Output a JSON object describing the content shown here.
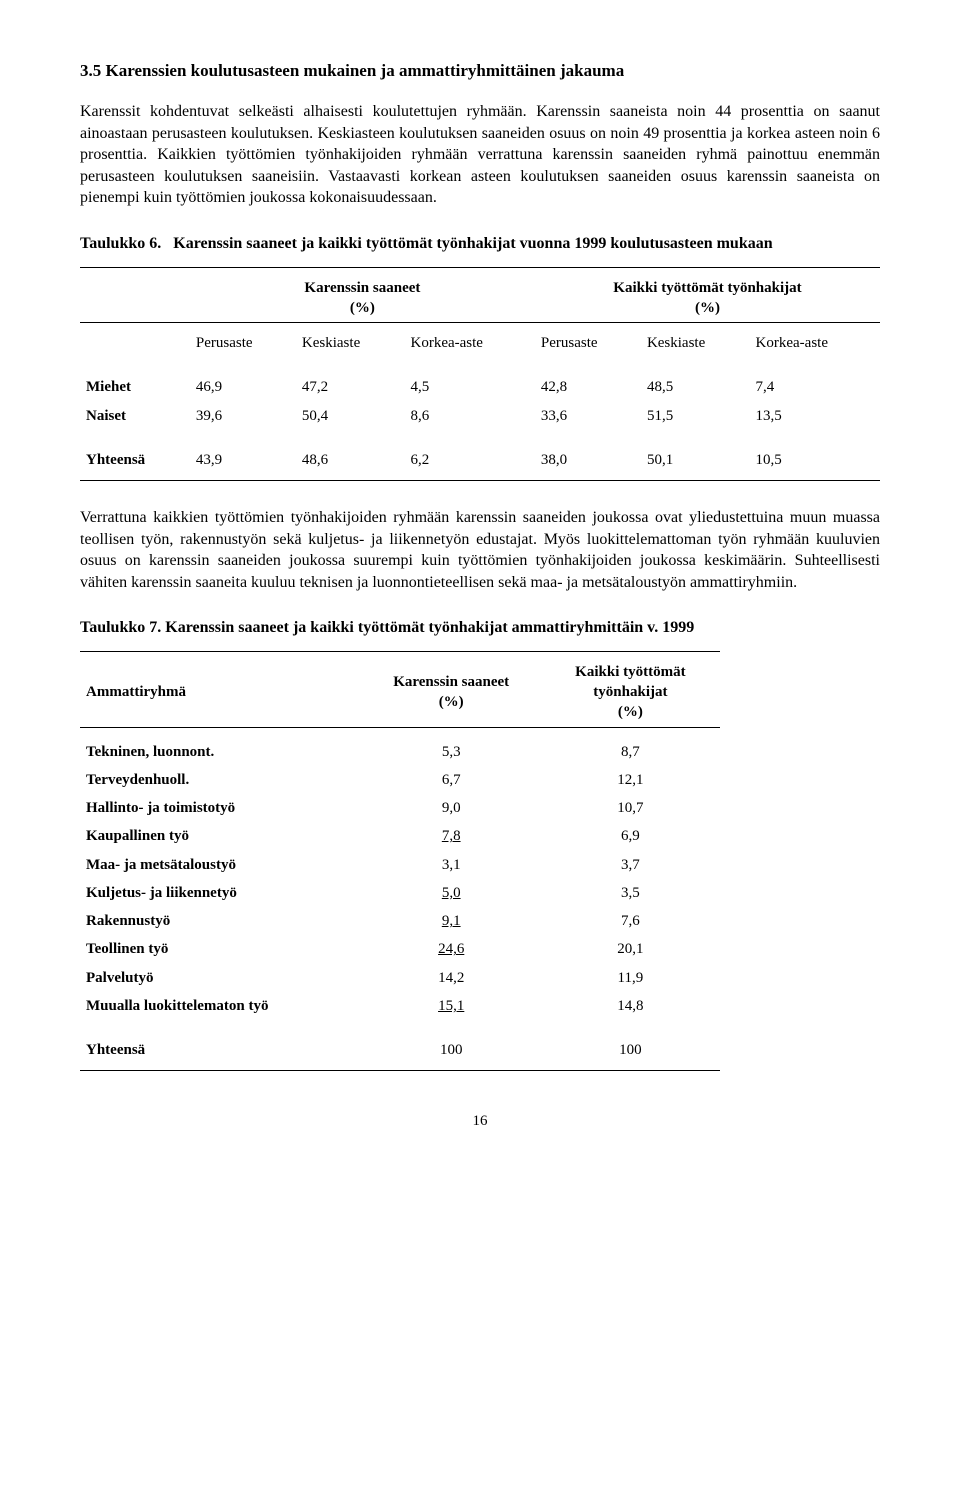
{
  "section": {
    "heading": "3.5 Karenssien koulutusasteen mukainen ja ammattiryhmittäinen jakauma"
  },
  "para1": "Karenssit kohdentuvat selkeästi alhaisesti koulutettujen ryhmään. Karenssin saaneista noin 44 prosenttia on saanut ainoastaan perusasteen koulutuksen. Keskiasteen koulutuksen saaneiden osuus on noin 49 prosenttia ja korkea asteen noin 6 prosenttia. Kaikkien työttömien työnhakijoiden ryhmään verrattuna karenssin saaneiden ryhmä painottuu enemmän perusasteen koulutuksen saaneisiin. Vastaavasti korkean asteen koulutuksen saaneiden osuus karenssin saaneista on pienempi kuin työttömien joukossa kokonaisuudessaan.",
  "table6": {
    "title_lead": "Taulukko 6.",
    "title_rest": "Karenssin saaneet ja kaikki työttömät työnhakijat vuonna 1999 koulutusasteen mukaan",
    "group_left": "Karenssin saaneet",
    "group_left_sub": "(%)",
    "group_right": "Kaikki työttömät työnhakijat",
    "group_right_sub": "(%)",
    "cols": [
      "Perusaste",
      "Keskiaste",
      "Korkea-aste",
      "Perusaste",
      "Keskiaste",
      "Korkea-aste"
    ],
    "rows": [
      {
        "label": "Miehet",
        "v": [
          "46,9",
          "47,2",
          "4,5",
          "42,8",
          "48,5",
          "7,4"
        ]
      },
      {
        "label": "Naiset",
        "v": [
          "39,6",
          "50,4",
          "8,6",
          "33,6",
          "51,5",
          "13,5"
        ]
      }
    ],
    "total": {
      "label": "Yhteensä",
      "v": [
        "43,9",
        "48,6",
        "6,2",
        "38,0",
        "50,1",
        "10,5"
      ]
    }
  },
  "para2": "Verrattuna kaikkien työttömien työnhakijoiden ryhmään karenssin saaneiden joukossa ovat yliedustettuina muun muassa teollisen työn, rakennustyön sekä kuljetus- ja liikennetyön edustajat. Myös luokittelemattoman työn ryhmään kuuluvien osuus on karenssin saaneiden joukossa suurempi kuin työttömien työnhakijoiden joukossa keskimäärin. Suhteellisesti vähiten karenssin saaneita kuuluu teknisen ja luonnontieteellisen sekä maa- ja metsätaloustyön ammattiryhmiin.",
  "table7": {
    "title_lead": "Taulukko 7.",
    "title_rest": "Karenssin saaneet ja kaikki työttömät työnhakijat ammattiryhmittäin v. 1999",
    "col1": "Ammattiryhmä",
    "col2": "Karenssin saaneet",
    "col2_sub": "(%)",
    "col3": "Kaikki työttömät",
    "col3b": "työnhakijat",
    "col3_sub": "(%)",
    "rows": [
      {
        "label": "Tekninen, luonnont.",
        "a": "5,3",
        "b": "8,7",
        "u": false
      },
      {
        "label": "Terveydenhuoll.",
        "a": "6,7",
        "b": "12,1",
        "u": false
      },
      {
        "label": "Hallinto- ja toimistotyö",
        "a": "9,0",
        "b": "10,7",
        "u": false
      },
      {
        "label": "Kaupallinen työ",
        "a": "7,8",
        "b": "6,9",
        "u": true
      },
      {
        "label": "Maa- ja metsätaloustyö",
        "a": "3,1",
        "b": "3,7",
        "u": false
      },
      {
        "label": "Kuljetus- ja liikennetyö",
        "a": "5,0",
        "b": "3,5",
        "u": true
      },
      {
        "label": "Rakennustyö",
        "a": "9,1",
        "b": "7,6",
        "u": true
      },
      {
        "label": "Teollinen työ",
        "a": "24,6",
        "b": "20,1",
        "u": true
      },
      {
        "label": "Palvelutyö",
        "a": "14,2",
        "b": "11,9",
        "u": false
      },
      {
        "label": "Muualla luokittelematon työ",
        "a": "15,1",
        "b": "14,8",
        "u": true
      }
    ],
    "total": {
      "label": "Yhteensä",
      "a": "100",
      "b": "100"
    }
  },
  "page_number": "16"
}
